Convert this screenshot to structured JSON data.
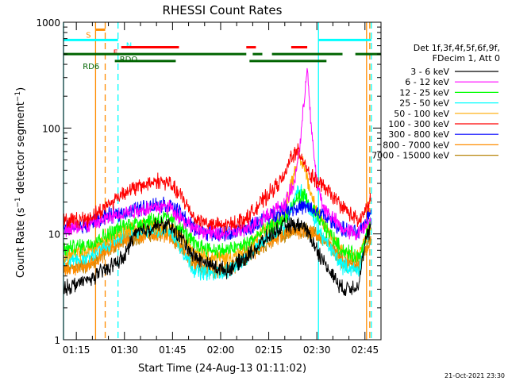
{
  "chart_data": {
    "type": "line",
    "title": "RHESSI Count Rates",
    "xlabel": "Start Time (24-Aug-13 01:11:02)",
    "ylabel_prefix": "Count Rate (s",
    "ylabel_sup1": "−1",
    "ylabel_mid": " detector segment",
    "ylabel_sup2": "−1",
    "ylabel_suffix": ")",
    "y_scale": "log",
    "xlim_minutes": [
      71,
      170
    ],
    "ylim": [
      1,
      1000
    ],
    "x_ticks": [
      {
        "t": 75,
        "label": "01:15"
      },
      {
        "t": 90,
        "label": "01:30"
      },
      {
        "t": 105,
        "label": "01:45"
      },
      {
        "t": 120,
        "label": "02:00"
      },
      {
        "t": 135,
        "label": "02:15"
      },
      {
        "t": 150,
        "label": "02:30"
      },
      {
        "t": 165,
        "label": "02:45"
      }
    ],
    "y_ticks": [
      {
        "v": 1,
        "label": "1"
      },
      {
        "v": 10,
        "label": "10"
      },
      {
        "v": 100,
        "label": "100"
      },
      {
        "v": 1000,
        "label": "1000"
      }
    ],
    "legend_header": [
      "Det 1f,3f,4f,5f,6f,9f,",
      "FDecim 1, Att 0"
    ],
    "legend_placement": "right",
    "series": [
      {
        "name": "3 - 6 keV",
        "color": "#000000",
        "points": [
          [
            71,
            3
          ],
          [
            74,
            3.3
          ],
          [
            79,
            3.7
          ],
          [
            80,
            3.9
          ],
          [
            82,
            4.2
          ],
          [
            90,
            6
          ],
          [
            93,
            10
          ],
          [
            100,
            12
          ],
          [
            104,
            12
          ],
          [
            108,
            9
          ],
          [
            112,
            6
          ],
          [
            118,
            4.9
          ],
          [
            122,
            4.5
          ],
          [
            128,
            6
          ],
          [
            134,
            9
          ],
          [
            140,
            12
          ],
          [
            146,
            12
          ],
          [
            152,
            5.5
          ],
          [
            158,
            3
          ],
          [
            163,
            3.3
          ],
          [
            165,
            8
          ],
          [
            167,
            12
          ]
        ]
      },
      {
        "name": "6 - 12 keV",
        "color": "#ff00ff",
        "points": [
          [
            71,
            11
          ],
          [
            74,
            11.5
          ],
          [
            79,
            12
          ],
          [
            80,
            12.5
          ],
          [
            82,
            13
          ],
          [
            90,
            16
          ],
          [
            100,
            18
          ],
          [
            104,
            18
          ],
          [
            108,
            14
          ],
          [
            112,
            11
          ],
          [
            118,
            10
          ],
          [
            122,
            10
          ],
          [
            128,
            11
          ],
          [
            134,
            15
          ],
          [
            140,
            19
          ],
          [
            143,
            30
          ],
          [
            145,
            80
          ],
          [
            147,
            400
          ],
          [
            148,
            120
          ],
          [
            150,
            30
          ],
          [
            152,
            18
          ],
          [
            158,
            11
          ],
          [
            163,
            10
          ],
          [
            165,
            12
          ],
          [
            167,
            15
          ]
        ]
      },
      {
        "name": "12 - 25 keV",
        "color": "#00ff00",
        "points": [
          [
            71,
            7
          ],
          [
            74,
            7.5
          ],
          [
            79,
            8
          ],
          [
            80,
            8.5
          ],
          [
            82,
            9
          ],
          [
            90,
            12
          ],
          [
            100,
            14
          ],
          [
            104,
            14
          ],
          [
            108,
            11
          ],
          [
            112,
            8
          ],
          [
            118,
            7
          ],
          [
            122,
            7
          ],
          [
            128,
            8
          ],
          [
            134,
            11
          ],
          [
            140,
            14
          ],
          [
            142,
            17
          ],
          [
            144,
            22
          ],
          [
            146,
            23
          ],
          [
            148,
            18
          ],
          [
            152,
            12
          ],
          [
            158,
            7
          ],
          [
            163,
            6
          ],
          [
            165,
            9
          ],
          [
            167,
            13
          ]
        ]
      },
      {
        "name": "25 - 50 keV",
        "color": "#00ffff",
        "points": [
          [
            71,
            5.5
          ],
          [
            74,
            5.8
          ],
          [
            79,
            6
          ],
          [
            80,
            6.5
          ],
          [
            82,
            7
          ],
          [
            90,
            10
          ],
          [
            100,
            11
          ],
          [
            104,
            11
          ],
          [
            108,
            7
          ],
          [
            112,
            4.5
          ],
          [
            118,
            4.2
          ],
          [
            122,
            4.5
          ],
          [
            128,
            6
          ],
          [
            134,
            9
          ],
          [
            140,
            12
          ],
          [
            142,
            18
          ],
          [
            144,
            26
          ],
          [
            146,
            24
          ],
          [
            148,
            16
          ],
          [
            152,
            9
          ],
          [
            158,
            5
          ],
          [
            163,
            4.5
          ],
          [
            165,
            8
          ],
          [
            167,
            13
          ]
        ]
      },
      {
        "name": "50 - 100 keV",
        "color": "#ffaa00",
        "points": [
          [
            71,
            6
          ],
          [
            74,
            6.5
          ],
          [
            79,
            7
          ],
          [
            80,
            7.5
          ],
          [
            82,
            8
          ],
          [
            90,
            11
          ],
          [
            100,
            12
          ],
          [
            104,
            12
          ],
          [
            108,
            9
          ],
          [
            112,
            7
          ],
          [
            118,
            6
          ],
          [
            122,
            6
          ],
          [
            128,
            7
          ],
          [
            134,
            11
          ],
          [
            140,
            16
          ],
          [
            142,
            30
          ],
          [
            144,
            50
          ],
          [
            146,
            45
          ],
          [
            148,
            25
          ],
          [
            152,
            12
          ],
          [
            158,
            7
          ],
          [
            163,
            6
          ],
          [
            165,
            9
          ],
          [
            167,
            12
          ]
        ]
      },
      {
        "name": "100 - 300 keV",
        "color": "#ff0000",
        "points": [
          [
            71,
            13
          ],
          [
            74,
            13.5
          ],
          [
            79,
            14
          ],
          [
            80,
            15
          ],
          [
            82,
            16
          ],
          [
            90,
            25
          ],
          [
            95,
            28
          ],
          [
            100,
            32
          ],
          [
            104,
            30
          ],
          [
            108,
            22
          ],
          [
            112,
            14
          ],
          [
            118,
            12
          ],
          [
            122,
            12
          ],
          [
            128,
            14
          ],
          [
            134,
            22
          ],
          [
            140,
            35
          ],
          [
            142,
            55
          ],
          [
            144,
            60
          ],
          [
            146,
            50
          ],
          [
            148,
            35
          ],
          [
            152,
            28
          ],
          [
            158,
            18
          ],
          [
            163,
            13
          ],
          [
            165,
            16
          ],
          [
            167,
            22
          ]
        ]
      },
      {
        "name": "300 - 800 keV",
        "color": "#0000ff",
        "points": [
          [
            71,
            11
          ],
          [
            74,
            11.5
          ],
          [
            79,
            12
          ],
          [
            80,
            13
          ],
          [
            82,
            14
          ],
          [
            90,
            16
          ],
          [
            100,
            19
          ],
          [
            104,
            19
          ],
          [
            108,
            15
          ],
          [
            112,
            11
          ],
          [
            118,
            10
          ],
          [
            122,
            10
          ],
          [
            128,
            11
          ],
          [
            134,
            14
          ],
          [
            140,
            17
          ],
          [
            146,
            18
          ],
          [
            152,
            15
          ],
          [
            158,
            11
          ],
          [
            163,
            10
          ],
          [
            165,
            13
          ],
          [
            167,
            17
          ]
        ]
      },
      {
        "name": "800 - 7000 keV",
        "color": "#ff8c00",
        "points": [
          [
            71,
            4.5
          ],
          [
            74,
            4.8
          ],
          [
            79,
            5
          ],
          [
            80,
            5.5
          ],
          [
            82,
            6
          ],
          [
            90,
            9
          ],
          [
            100,
            10
          ],
          [
            104,
            10
          ],
          [
            108,
            7
          ],
          [
            112,
            5
          ],
          [
            118,
            4.6
          ],
          [
            122,
            4.6
          ],
          [
            128,
            6
          ],
          [
            134,
            8
          ],
          [
            140,
            10
          ],
          [
            146,
            11
          ],
          [
            152,
            9
          ],
          [
            158,
            5.5
          ],
          [
            163,
            5
          ],
          [
            165,
            7
          ],
          [
            167,
            9
          ]
        ]
      },
      {
        "name": "7000 - 15000 keV",
        "color": "#b8860b",
        "points": [
          [
            71,
            4.5
          ],
          [
            74,
            4.8
          ],
          [
            79,
            5
          ],
          [
            80,
            5.5
          ],
          [
            82,
            6
          ],
          [
            90,
            9
          ],
          [
            100,
            10
          ],
          [
            104,
            10
          ],
          [
            108,
            7
          ],
          [
            112,
            5
          ],
          [
            118,
            4.6
          ],
          [
            122,
            4.6
          ],
          [
            128,
            6
          ],
          [
            134,
            8
          ],
          [
            140,
            10
          ],
          [
            146,
            11
          ],
          [
            152,
            9
          ],
          [
            158,
            5.5
          ],
          [
            163,
            5
          ],
          [
            165,
            7
          ],
          [
            167,
            9
          ]
        ]
      }
    ],
    "flag_bars": [
      {
        "label": "S",
        "color": "#ff8c00",
        "level": 850,
        "segments": [
          [
            81,
            84
          ]
        ],
        "label_t": 78
      },
      {
        "label": "N",
        "color": "#00ffff",
        "level": 680,
        "segments": [
          [
            71,
            88
          ],
          [
            150.5,
            167
          ]
        ],
        "label_t": 90.5
      },
      {
        "label": "F",
        "color": "#ff0000",
        "level": 580,
        "segments": [
          [
            89,
            107
          ],
          [
            128,
            131
          ],
          [
            142,
            147
          ]
        ],
        "label_t": 86.5
      },
      {
        "label": "RDO",
        "color": "#006400",
        "level": 500,
        "segments": [
          [
            71,
            128
          ],
          [
            130,
            133
          ],
          [
            136,
            158
          ],
          [
            162,
            170
          ]
        ],
        "label_t": 88.5
      },
      {
        "label": "RD6",
        "color": "#006400",
        "level": 430,
        "segments": [
          [
            87,
            106
          ],
          [
            129,
            153
          ]
        ],
        "label_t": 77
      }
    ],
    "vertical_lines": [
      {
        "t": 71,
        "color": "#00ffff",
        "dashed": false
      },
      {
        "t": 81,
        "color": "#ff8c00",
        "dashed": false
      },
      {
        "t": 84,
        "color": "#ff8c00",
        "dashed": true
      },
      {
        "t": 88,
        "color": "#00ffff",
        "dashed": true
      },
      {
        "t": 150.5,
        "color": "#00ffff",
        "dashed": false
      },
      {
        "t": 165.5,
        "color": "#ff8c00",
        "dashed": false
      },
      {
        "t": 166.5,
        "color": "#ff8c00",
        "dashed": true
      },
      {
        "t": 167,
        "color": "#00ffff",
        "dashed": true
      }
    ],
    "footer_timestamp": "21-Oct-2021 23:30"
  }
}
